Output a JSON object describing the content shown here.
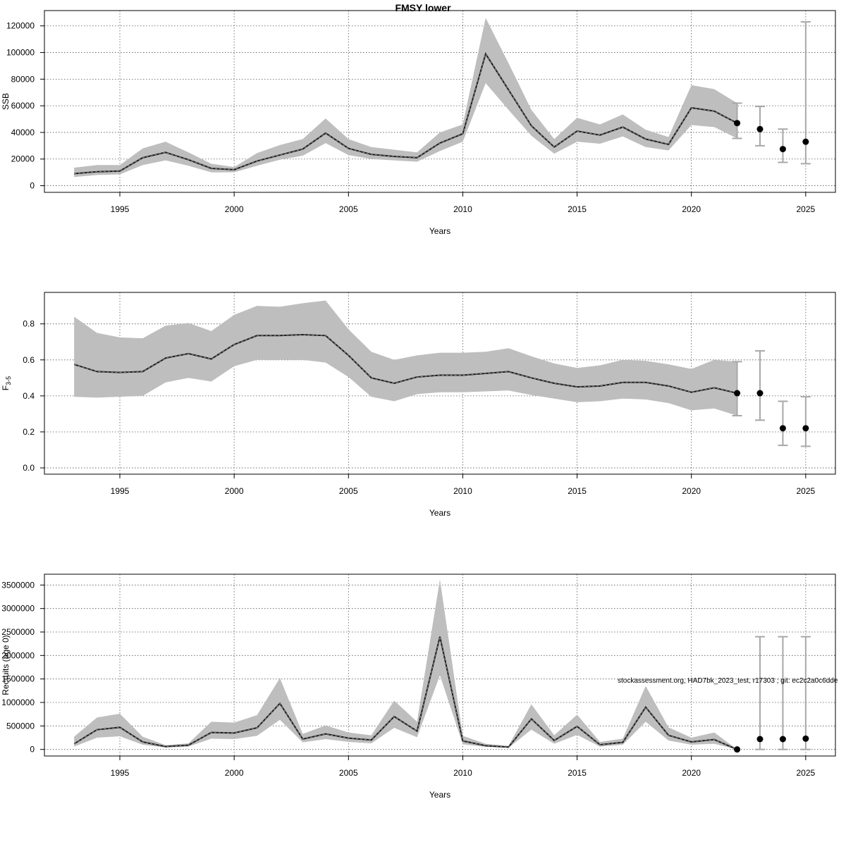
{
  "footer_text": "stockassessment.org, HAD7bk_2023_test, r17303 ; git: ec2c2a0c6dde",
  "chart_data": [
    {
      "type": "line",
      "title": "FMSY lower",
      "xlabel": "Years",
      "ylabel": "SSB",
      "ylabel_sub": "",
      "xlim": [
        1991.7,
        2026.3
      ],
      "ylim": [
        -5000,
        131500
      ],
      "xticks": [
        1995,
        2000,
        2005,
        2010,
        2015,
        2020,
        2025
      ],
      "yticks": [
        0,
        20000,
        40000,
        60000,
        80000,
        100000,
        120000
      ],
      "ytick_labels": [
        "0",
        "20000",
        "40000",
        "60000",
        "80000",
        "100000",
        "120000"
      ],
      "grid": true,
      "series": [
        {
          "name": "historical",
          "years": [
            1993,
            1994,
            1995,
            1996,
            1997,
            1998,
            1999,
            2000,
            2001,
            2002,
            2003,
            2004,
            2005,
            2006,
            2007,
            2008,
            2009,
            2010,
            2011,
            2012,
            2013,
            2014,
            2015,
            2016,
            2017,
            2018,
            2019,
            2020,
            2021,
            2022
          ],
          "estimate": [
            9000,
            10500,
            11000,
            21000,
            25000,
            19500,
            13000,
            12000,
            18500,
            23000,
            27500,
            39500,
            28000,
            23500,
            22000,
            21000,
            32000,
            39000,
            99000,
            72000,
            45000,
            29000,
            41000,
            38000,
            44000,
            35000,
            31000,
            58500,
            56000,
            47000
          ],
          "lower": [
            6500,
            8000,
            8500,
            15500,
            19000,
            15000,
            10000,
            10000,
            15000,
            19500,
            22500,
            32000,
            23000,
            20000,
            19000,
            18000,
            26000,
            33000,
            77000,
            57000,
            37500,
            24000,
            33000,
            31500,
            37000,
            29000,
            26500,
            45500,
            44000,
            35500
          ],
          "upper": [
            13500,
            15500,
            15500,
            28000,
            33000,
            25000,
            16500,
            14000,
            24500,
            30500,
            35000,
            50500,
            35000,
            29000,
            27000,
            25000,
            40000,
            46000,
            126000,
            92000,
            57000,
            35000,
            51000,
            46000,
            53500,
            42000,
            36500,
            75500,
            72500,
            62000
          ]
        }
      ],
      "forecast": {
        "years": [
          2022,
          2023,
          2024,
          2025
        ],
        "estimate": [
          47000,
          42500,
          27500,
          33000
        ],
        "lower": [
          35500,
          30000,
          17500,
          16500
        ],
        "upper": [
          62000,
          59500,
          42500,
          123000
        ]
      }
    },
    {
      "type": "line",
      "title": "",
      "xlabel": "Years",
      "ylabel": "F",
      "ylabel_sub": "3-5",
      "xlim": [
        1991.7,
        2026.3
      ],
      "ylim": [
        -0.035,
        0.975
      ],
      "xticks": [
        1995,
        2000,
        2005,
        2010,
        2015,
        2020,
        2025
      ],
      "yticks": [
        0,
        0.2,
        0.4,
        0.6,
        0.8
      ],
      "ytick_labels": [
        "0.0",
        "0.2",
        "0.4",
        "0.6",
        "0.8"
      ],
      "grid": true,
      "series": [
        {
          "name": "historical",
          "years": [
            1993,
            1994,
            1995,
            1996,
            1997,
            1998,
            1999,
            2000,
            2001,
            2002,
            2003,
            2004,
            2005,
            2006,
            2007,
            2008,
            2009,
            2010,
            2011,
            2012,
            2013,
            2014,
            2015,
            2016,
            2017,
            2018,
            2019,
            2020,
            2021,
            2022
          ],
          "estimate": [
            0.575,
            0.535,
            0.53,
            0.535,
            0.61,
            0.635,
            0.605,
            0.685,
            0.735,
            0.735,
            0.74,
            0.735,
            0.625,
            0.5,
            0.47,
            0.505,
            0.515,
            0.515,
            0.525,
            0.535,
            0.5,
            0.47,
            0.45,
            0.455,
            0.475,
            0.475,
            0.455,
            0.42,
            0.445,
            0.415
          ],
          "lower": [
            0.395,
            0.39,
            0.395,
            0.4,
            0.475,
            0.5,
            0.48,
            0.565,
            0.6,
            0.6,
            0.6,
            0.585,
            0.505,
            0.395,
            0.37,
            0.41,
            0.42,
            0.42,
            0.425,
            0.43,
            0.405,
            0.385,
            0.365,
            0.37,
            0.385,
            0.38,
            0.36,
            0.32,
            0.33,
            0.29
          ],
          "upper": [
            0.84,
            0.75,
            0.725,
            0.72,
            0.79,
            0.805,
            0.76,
            0.85,
            0.9,
            0.895,
            0.915,
            0.93,
            0.77,
            0.645,
            0.6,
            0.625,
            0.64,
            0.64,
            0.645,
            0.665,
            0.62,
            0.58,
            0.555,
            0.57,
            0.6,
            0.595,
            0.575,
            0.55,
            0.6,
            0.59
          ]
        }
      ],
      "forecast": {
        "years": [
          2022,
          2023,
          2024,
          2025
        ],
        "estimate": [
          0.415,
          0.415,
          0.22,
          0.22
        ],
        "lower": [
          0.29,
          0.265,
          0.125,
          0.12
        ],
        "upper": [
          0.59,
          0.65,
          0.37,
          0.395
        ]
      }
    },
    {
      "type": "line",
      "title": "",
      "xlabel": "Years",
      "ylabel": "Recruits (age 0)",
      "ylabel_sub": "",
      "xlim": [
        1991.7,
        2026.3
      ],
      "ylim": [
        -140000,
        3730000
      ],
      "xticks": [
        1995,
        2000,
        2005,
        2010,
        2015,
        2020,
        2025
      ],
      "yticks": [
        0,
        500000,
        1000000,
        1500000,
        2000000,
        2500000,
        3000000,
        3500000
      ],
      "ytick_labels": [
        "0",
        "500000",
        "1000000",
        "1500000",
        "2000000",
        "2500000",
        "3000000",
        "3500000"
      ],
      "grid": true,
      "series": [
        {
          "name": "historical",
          "years": [
            1993,
            1994,
            1995,
            1996,
            1997,
            1998,
            1999,
            2000,
            2001,
            2002,
            2003,
            2004,
            2005,
            2006,
            2007,
            2008,
            2009,
            2010,
            2011,
            2012,
            2013,
            2014,
            2015,
            2016,
            2017,
            2018,
            2019,
            2020,
            2021,
            2022
          ],
          "estimate": [
            120000,
            420000,
            470000,
            160000,
            60000,
            90000,
            360000,
            350000,
            460000,
            980000,
            220000,
            330000,
            240000,
            200000,
            700000,
            390000,
            2400000,
            180000,
            80000,
            50000,
            650000,
            190000,
            490000,
            100000,
            150000,
            900000,
            300000,
            160000,
            210000,
            0
          ],
          "lower": [
            60000,
            250000,
            280000,
            100000,
            40000,
            60000,
            230000,
            220000,
            290000,
            630000,
            150000,
            220000,
            160000,
            130000,
            460000,
            260000,
            1580000,
            110000,
            55000,
            35000,
            420000,
            120000,
            310000,
            60000,
            100000,
            590000,
            190000,
            100000,
            120000,
            0
          ],
          "upper": [
            270000,
            680000,
            760000,
            270000,
            90000,
            130000,
            590000,
            570000,
            730000,
            1520000,
            330000,
            510000,
            360000,
            300000,
            1040000,
            590000,
            3620000,
            290000,
            120000,
            75000,
            960000,
            300000,
            740000,
            160000,
            230000,
            1350000,
            470000,
            250000,
            360000,
            0
          ]
        }
      ],
      "forecast": {
        "years": [
          2022,
          2023,
          2024,
          2025
        ],
        "estimate": [
          0,
          220000,
          220000,
          230000
        ],
        "lower": [
          0,
          0,
          0,
          0
        ],
        "upper": [
          0,
          2400000,
          2400000,
          2400000
        ]
      }
    }
  ]
}
